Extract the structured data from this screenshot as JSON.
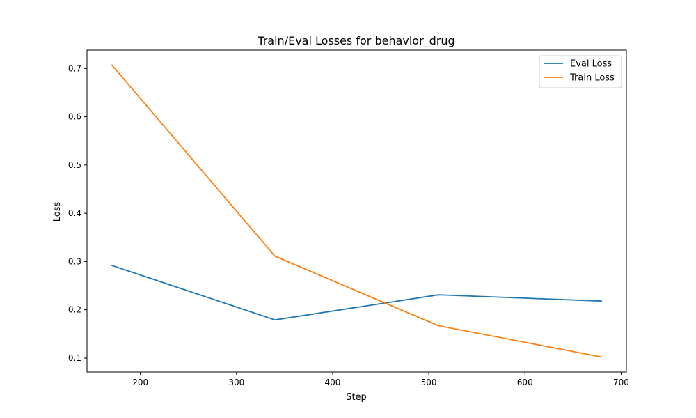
{
  "chart_data": {
    "type": "line",
    "title": "Train/Eval Losses for behavior_drug",
    "xlabel": "Step",
    "ylabel": "Loss",
    "xlim": [
      144.5,
      705.5
    ],
    "ylim": [
      0.071,
      0.738
    ],
    "xticks": [
      200,
      300,
      400,
      500,
      600,
      700
    ],
    "yticks": [
      0.1,
      0.2,
      0.3,
      0.4,
      0.5,
      0.6,
      0.7
    ],
    "x": [
      170,
      340,
      510,
      680
    ],
    "series": [
      {
        "name": "Eval Loss",
        "color": "#1f77b4",
        "values": [
          0.292,
          0.179,
          0.231,
          0.218
        ]
      },
      {
        "name": "Train Loss",
        "color": "#ff7f0e",
        "values": [
          0.708,
          0.311,
          0.167,
          0.102
        ]
      }
    ],
    "legend": "top-right",
    "grid": false
  }
}
